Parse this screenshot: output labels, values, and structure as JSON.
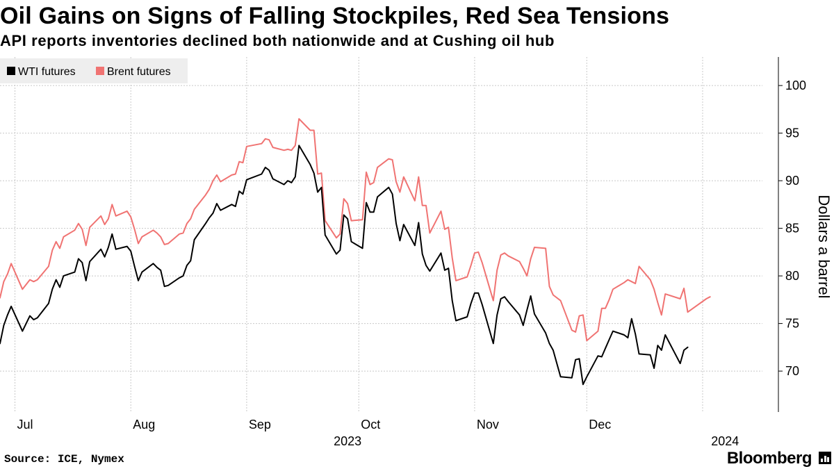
{
  "title": "Oil Gains on Signs of Falling Stockpiles, Red Sea Tensions",
  "subtitle": "API reports inventories declined both nationwide and at Cushing oil hub",
  "source": "Source: ICE, Nymex",
  "brand": "Bloomberg",
  "colors": {
    "wti": "#000000",
    "brent": "#f07372",
    "grid": "#c8c8c8",
    "legend_bg": "#eeeeee"
  },
  "chart_data": {
    "type": "line",
    "ylabel": "Dollars a barrel",
    "ylim": [
      65.7,
      103
    ],
    "yticks": [
      70,
      75,
      80,
      85,
      90,
      95,
      100
    ],
    "x_range": [
      "2023-06-27",
      "2024-01-17"
    ],
    "x_month_labels": [
      {
        "label": "Jul",
        "date": "2023-07-01"
      },
      {
        "label": "Aug",
        "date": "2023-08-01"
      },
      {
        "label": "Sep",
        "date": "2023-09-01"
      },
      {
        "label": "Oct",
        "date": "2023-10-01"
      },
      {
        "label": "Nov",
        "date": "2023-11-01"
      },
      {
        "label": "Dec",
        "date": "2023-12-01"
      }
    ],
    "x_year_labels": [
      {
        "label": "2023",
        "date": "2023-09-28"
      },
      {
        "label": "2024",
        "date": "2024-01-07"
      }
    ],
    "legend": [
      "WTI futures",
      "Brent futures"
    ],
    "series": [
      {
        "name": "WTI futures",
        "color": "#000000",
        "points": [
          [
            "2023-06-27",
            72.9
          ],
          [
            "2023-06-28",
            74.8
          ],
          [
            "2023-06-29",
            75.9
          ],
          [
            "2023-06-30",
            76.8
          ],
          [
            "2023-07-03",
            74.2
          ],
          [
            "2023-07-05",
            75.8
          ],
          [
            "2023-07-06",
            75.4
          ],
          [
            "2023-07-07",
            75.6
          ],
          [
            "2023-07-10",
            77.1
          ],
          [
            "2023-07-11",
            78.6
          ],
          [
            "2023-07-12",
            79.6
          ],
          [
            "2023-07-13",
            78.8
          ],
          [
            "2023-07-14",
            80.0
          ],
          [
            "2023-07-17",
            80.4
          ],
          [
            "2023-07-18",
            81.8
          ],
          [
            "2023-07-19",
            81.4
          ],
          [
            "2023-07-20",
            79.5
          ],
          [
            "2023-07-21",
            81.5
          ],
          [
            "2023-07-24",
            82.8
          ],
          [
            "2023-07-25",
            82.0
          ],
          [
            "2023-07-26",
            83.0
          ],
          [
            "2023-07-27",
            84.4
          ],
          [
            "2023-07-28",
            82.8
          ],
          [
            "2023-07-31",
            83.1
          ],
          [
            "2023-08-01",
            82.6
          ],
          [
            "2023-08-02",
            81.0
          ],
          [
            "2023-08-03",
            79.5
          ],
          [
            "2023-08-04",
            80.4
          ],
          [
            "2023-08-07",
            81.3
          ],
          [
            "2023-08-08",
            80.9
          ],
          [
            "2023-08-09",
            80.6
          ],
          [
            "2023-08-10",
            78.9
          ],
          [
            "2023-08-11",
            79.0
          ],
          [
            "2023-08-14",
            79.8
          ],
          [
            "2023-08-15",
            80.0
          ],
          [
            "2023-08-16",
            81.1
          ],
          [
            "2023-08-17",
            81.6
          ],
          [
            "2023-08-18",
            83.8
          ],
          [
            "2023-08-21",
            85.5
          ],
          [
            "2023-08-22",
            86.1
          ],
          [
            "2023-08-23",
            86.6
          ],
          [
            "2023-08-24",
            87.6
          ],
          [
            "2023-08-25",
            86.9
          ],
          [
            "2023-08-28",
            87.5
          ],
          [
            "2023-08-29",
            87.3
          ],
          [
            "2023-08-30",
            88.9
          ],
          [
            "2023-08-31",
            88.6
          ],
          [
            "2023-09-01",
            90.1
          ],
          [
            "2023-09-05",
            90.7
          ],
          [
            "2023-09-06",
            91.4
          ],
          [
            "2023-09-07",
            91.1
          ],
          [
            "2023-09-08",
            90.2
          ],
          [
            "2023-09-11",
            89.6
          ],
          [
            "2023-09-12",
            90.0
          ],
          [
            "2023-09-13",
            89.8
          ],
          [
            "2023-09-14",
            90.4
          ],
          [
            "2023-09-15",
            93.7
          ],
          [
            "2023-09-18",
            91.7
          ],
          [
            "2023-09-19",
            90.8
          ],
          [
            "2023-09-20",
            88.8
          ],
          [
            "2023-09-21",
            89.3
          ],
          [
            "2023-09-22",
            84.3
          ],
          [
            "2023-09-25",
            82.3
          ],
          [
            "2023-09-26",
            82.7
          ],
          [
            "2023-09-27",
            86.4
          ],
          [
            "2023-09-28",
            86.0
          ],
          [
            "2023-09-29",
            83.6
          ],
          [
            "2023-10-02",
            82.9
          ],
          [
            "2023-10-03",
            87.7
          ],
          [
            "2023-10-04",
            86.7
          ],
          [
            "2023-10-05",
            86.7
          ],
          [
            "2023-10-06",
            88.3
          ],
          [
            "2023-10-09",
            89.3
          ],
          [
            "2023-10-10",
            88.6
          ],
          [
            "2023-10-11",
            85.5
          ],
          [
            "2023-10-12",
            83.7
          ],
          [
            "2023-10-13",
            85.4
          ],
          [
            "2023-10-16",
            83.2
          ],
          [
            "2023-10-17",
            85.6
          ],
          [
            "2023-10-18",
            82.3
          ],
          [
            "2023-10-19",
            81.1
          ],
          [
            "2023-10-20",
            80.5
          ],
          [
            "2023-10-23",
            82.4
          ],
          [
            "2023-10-24",
            80.6
          ],
          [
            "2023-10-25",
            80.8
          ],
          [
            "2023-10-26",
            77.4
          ],
          [
            "2023-10-27",
            75.3
          ],
          [
            "2023-10-30",
            75.7
          ],
          [
            "2023-10-31",
            77.1
          ],
          [
            "2023-11-01",
            78.2
          ],
          [
            "2023-11-02",
            78.2
          ],
          [
            "2023-11-03",
            77.0
          ],
          [
            "2023-11-06",
            72.9
          ],
          [
            "2023-11-07",
            75.9
          ],
          [
            "2023-11-08",
            77.6
          ],
          [
            "2023-11-09",
            77.8
          ],
          [
            "2023-11-10",
            77.3
          ],
          [
            "2023-11-13",
            75.9
          ],
          [
            "2023-11-14",
            74.8
          ],
          [
            "2023-11-15",
            76.4
          ],
          [
            "2023-11-16",
            77.9
          ],
          [
            "2023-11-17",
            76.0
          ],
          [
            "2023-11-20",
            74.0
          ],
          [
            "2023-11-21",
            72.9
          ],
          [
            "2023-11-22",
            72.2
          ],
          [
            "2023-11-24",
            69.4
          ],
          [
            "2023-11-27",
            69.3
          ],
          [
            "2023-11-28",
            71.2
          ],
          [
            "2023-11-29",
            71.3
          ],
          [
            "2023-11-30",
            68.6
          ],
          [
            "2023-12-01",
            69.4
          ],
          [
            "2023-12-04",
            71.6
          ],
          [
            "2023-12-05",
            71.5
          ],
          [
            "2023-12-06",
            72.4
          ],
          [
            "2023-12-07",
            73.3
          ],
          [
            "2023-12-08",
            74.2
          ],
          [
            "2023-12-11",
            73.8
          ],
          [
            "2023-12-12",
            73.5
          ],
          [
            "2023-12-13",
            75.5
          ],
          [
            "2023-12-14",
            73.9
          ],
          [
            "2023-12-15",
            71.8
          ],
          [
            "2023-12-18",
            71.7
          ],
          [
            "2023-12-19",
            70.3
          ],
          [
            "2023-12-20",
            72.7
          ],
          [
            "2023-12-21",
            72.2
          ],
          [
            "2023-12-22",
            73.8
          ],
          [
            "2023-12-26",
            70.8
          ],
          [
            "2023-12-27",
            72.2
          ],
          [
            "2023-12-28",
            72.5
          ]
        ]
      },
      {
        "name": "Brent futures",
        "color": "#f07372",
        "points": [
          [
            "2023-06-27",
            77.7
          ],
          [
            "2023-06-28",
            79.4
          ],
          [
            "2023-06-29",
            80.2
          ],
          [
            "2023-06-30",
            81.3
          ],
          [
            "2023-07-03",
            78.6
          ],
          [
            "2023-07-05",
            79.6
          ],
          [
            "2023-07-06",
            79.4
          ],
          [
            "2023-07-07",
            79.6
          ],
          [
            "2023-07-10",
            81.0
          ],
          [
            "2023-07-11",
            82.7
          ],
          [
            "2023-07-12",
            83.6
          ],
          [
            "2023-07-13",
            82.9
          ],
          [
            "2023-07-14",
            84.1
          ],
          [
            "2023-07-17",
            84.8
          ],
          [
            "2023-07-18",
            85.5
          ],
          [
            "2023-07-19",
            84.9
          ],
          [
            "2023-07-20",
            83.2
          ],
          [
            "2023-07-21",
            85.1
          ],
          [
            "2023-07-24",
            86.3
          ],
          [
            "2023-07-25",
            85.4
          ],
          [
            "2023-07-26",
            86.0
          ],
          [
            "2023-07-27",
            87.5
          ],
          [
            "2023-07-28",
            86.3
          ],
          [
            "2023-07-31",
            86.8
          ],
          [
            "2023-08-01",
            86.2
          ],
          [
            "2023-08-02",
            84.9
          ],
          [
            "2023-08-03",
            83.4
          ],
          [
            "2023-08-04",
            84.1
          ],
          [
            "2023-08-07",
            84.8
          ],
          [
            "2023-08-08",
            84.5
          ],
          [
            "2023-08-09",
            84.1
          ],
          [
            "2023-08-10",
            83.3
          ],
          [
            "2023-08-11",
            83.4
          ],
          [
            "2023-08-14",
            84.4
          ],
          [
            "2023-08-15",
            84.5
          ],
          [
            "2023-08-16",
            85.5
          ],
          [
            "2023-08-17",
            86.0
          ],
          [
            "2023-08-18",
            87.0
          ],
          [
            "2023-08-21",
            88.5
          ],
          [
            "2023-08-22",
            89.1
          ],
          [
            "2023-08-23",
            90.0
          ],
          [
            "2023-08-24",
            90.6
          ],
          [
            "2023-08-25",
            89.9
          ],
          [
            "2023-08-28",
            90.6
          ],
          [
            "2023-08-29",
            90.7
          ],
          [
            "2023-08-30",
            92.0
          ],
          [
            "2023-08-31",
            91.9
          ],
          [
            "2023-09-01",
            93.6
          ],
          [
            "2023-09-05",
            93.9
          ],
          [
            "2023-09-06",
            94.4
          ],
          [
            "2023-09-07",
            94.3
          ],
          [
            "2023-09-08",
            93.5
          ],
          [
            "2023-09-11",
            93.2
          ],
          [
            "2023-09-12",
            93.3
          ],
          [
            "2023-09-13",
            93.2
          ],
          [
            "2023-09-14",
            93.7
          ],
          [
            "2023-09-15",
            96.5
          ],
          [
            "2023-09-18",
            95.3
          ],
          [
            "2023-09-19",
            95.3
          ],
          [
            "2023-09-20",
            90.7
          ],
          [
            "2023-09-21",
            90.8
          ],
          [
            "2023-09-22",
            85.8
          ],
          [
            "2023-09-25",
            84.0
          ],
          [
            "2023-09-26",
            84.4
          ],
          [
            "2023-09-27",
            88.1
          ],
          [
            "2023-09-28",
            87.6
          ],
          [
            "2023-09-29",
            85.8
          ],
          [
            "2023-10-02",
            85.9
          ],
          [
            "2023-10-03",
            90.9
          ],
          [
            "2023-10-04",
            89.6
          ],
          [
            "2023-10-05",
            89.8
          ],
          [
            "2023-10-06",
            91.4
          ],
          [
            "2023-10-09",
            92.3
          ],
          [
            "2023-10-10",
            92.2
          ],
          [
            "2023-10-11",
            89.9
          ],
          [
            "2023-10-12",
            88.8
          ],
          [
            "2023-10-13",
            90.4
          ],
          [
            "2023-10-16",
            87.9
          ],
          [
            "2023-10-17",
            90.4
          ],
          [
            "2023-10-18",
            87.4
          ],
          [
            "2023-10-19",
            87.4
          ],
          [
            "2023-10-20",
            84.5
          ],
          [
            "2023-10-23",
            86.8
          ],
          [
            "2023-10-24",
            84.9
          ],
          [
            "2023-10-25",
            85.1
          ],
          [
            "2023-10-26",
            81.9
          ],
          [
            "2023-10-27",
            79.5
          ],
          [
            "2023-10-30",
            79.9
          ],
          [
            "2023-10-31",
            81.1
          ],
          [
            "2023-11-01",
            82.4
          ],
          [
            "2023-11-02",
            82.5
          ],
          [
            "2023-11-03",
            81.4
          ],
          [
            "2023-11-06",
            77.4
          ],
          [
            "2023-11-07",
            80.6
          ],
          [
            "2023-11-08",
            82.2
          ],
          [
            "2023-11-09",
            82.4
          ],
          [
            "2023-11-10",
            82.1
          ],
          [
            "2023-11-13",
            81.5
          ],
          [
            "2023-11-14",
            80.8
          ],
          [
            "2023-11-15",
            80.0
          ],
          [
            "2023-11-16",
            81.8
          ],
          [
            "2023-11-17",
            83.0
          ],
          [
            "2023-11-20",
            82.9
          ],
          [
            "2023-11-21",
            78.9
          ],
          [
            "2023-11-22",
            78.0
          ],
          [
            "2023-11-24",
            77.4
          ],
          [
            "2023-11-27",
            74.3
          ],
          [
            "2023-11-28",
            74.1
          ],
          [
            "2023-11-29",
            75.8
          ],
          [
            "2023-11-30",
            75.9
          ],
          [
            "2023-12-01",
            73.2
          ],
          [
            "2023-12-04",
            74.2
          ],
          [
            "2023-12-05",
            76.6
          ],
          [
            "2023-12-06",
            76.6
          ],
          [
            "2023-12-07",
            77.5
          ],
          [
            "2023-12-08",
            78.6
          ],
          [
            "2023-12-11",
            79.3
          ],
          [
            "2023-12-12",
            79.6
          ],
          [
            "2023-12-13",
            79.4
          ],
          [
            "2023-12-14",
            79.2
          ],
          [
            "2023-12-15",
            81.0
          ],
          [
            "2023-12-18",
            79.6
          ],
          [
            "2023-12-19",
            78.6
          ],
          [
            "2023-12-20",
            77.2
          ],
          [
            "2023-12-21",
            75.9
          ],
          [
            "2023-12-22",
            78.1
          ],
          [
            "2023-12-26",
            77.6
          ],
          [
            "2023-12-27",
            78.7
          ],
          [
            "2023-12-28",
            76.2
          ],
          [
            "2024-01-02",
            77.6
          ],
          [
            "2024-01-03",
            77.8
          ]
        ]
      }
    ]
  }
}
